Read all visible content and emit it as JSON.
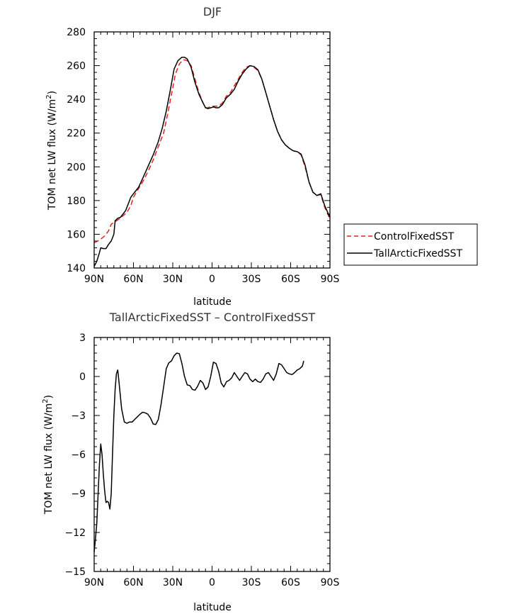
{
  "chart_data": [
    {
      "type": "line",
      "title": "DJF",
      "xlabel": "latitude",
      "ylabel_prefix": "TOM net LW flux  (W/m",
      "ylabel_sup": "2",
      "ylabel_suffix": ")",
      "xlim": [
        -90,
        90
      ],
      "ylim": [
        140,
        280
      ],
      "x_ticks": [
        -90,
        -60,
        -30,
        0,
        30,
        60,
        90
      ],
      "x_tick_labels": [
        "90N",
        "60N",
        "30N",
        "0",
        "30S",
        "60S",
        "90S"
      ],
      "y_ticks": [
        140,
        160,
        180,
        200,
        220,
        240,
        260,
        280
      ],
      "y_tick_labels": [
        "140",
        "160",
        "180",
        "200",
        "220",
        "240",
        "260",
        "280"
      ],
      "legend_position": "right",
      "series": [
        {
          "name": "ControlFixedSST",
          "color": "#e8201a",
          "dash": "dashed",
          "points": [
            [
              -90,
              155
            ],
            [
              -86,
              156.5
            ],
            [
              -82,
              159
            ],
            [
              -79,
              162
            ],
            [
              -77,
              166
            ],
            [
              -74,
              167.5
            ],
            [
              -71,
              169
            ],
            [
              -68,
              171
            ],
            [
              -65,
              173
            ],
            [
              -62,
              177
            ],
            [
              -60,
              182
            ],
            [
              -57,
              186
            ],
            [
              -53,
              191
            ],
            [
              -49,
              197
            ],
            [
              -45,
              204
            ],
            [
              -41,
              212
            ],
            [
              -37,
              220
            ],
            [
              -34,
              231
            ],
            [
              -31,
              243
            ],
            [
              -28,
              255
            ],
            [
              -25,
              261
            ],
            [
              -22,
              263.5
            ],
            [
              -19,
              263
            ],
            [
              -16,
              260
            ],
            [
              -13,
              252
            ],
            [
              -10,
              244
            ],
            [
              -7,
              238
            ],
            [
              -5,
              235
            ],
            [
              -3,
              235
            ],
            [
              -1,
              236
            ],
            [
              1,
              236
            ],
            [
              3,
              236
            ],
            [
              5,
              236
            ],
            [
              8,
              238
            ],
            [
              11,
              242
            ],
            [
              14,
              244
            ],
            [
              17,
              248
            ],
            [
              20,
              252
            ],
            [
              23,
              256
            ],
            [
              26,
              259
            ],
            [
              29,
              260
            ],
            [
              32,
              259
            ],
            [
              35,
              257
            ],
            [
              38,
              252
            ],
            [
              41,
              244
            ],
            [
              44,
              236
            ],
            [
              47,
              228
            ],
            [
              50,
              221
            ],
            [
              53,
              216
            ],
            [
              56,
              213
            ],
            [
              59,
              211
            ],
            [
              62,
              209.5
            ],
            [
              65,
              209
            ],
            [
              68,
              207
            ],
            [
              71,
              200
            ],
            [
              74,
              191
            ],
            [
              77,
              185
            ],
            [
              80,
              183
            ],
            [
              83,
              183.5
            ],
            [
              86,
              176
            ],
            [
              90,
              169
            ]
          ]
        },
        {
          "name": "TallArcticFixedSST",
          "color": "#000000",
          "dash": "solid",
          "points": [
            [
              -90,
              141
            ],
            [
              -88,
              144
            ],
            [
              -86,
              149
            ],
            [
              -85,
              152
            ],
            [
              -83,
              151.5
            ],
            [
              -81,
              151.5
            ],
            [
              -79,
              154
            ],
            [
              -77,
              156
            ],
            [
              -75,
              160
            ],
            [
              -74,
              168
            ],
            [
              -72,
              169.5
            ],
            [
              -70,
              170
            ],
            [
              -68,
              172
            ],
            [
              -66,
              174
            ],
            [
              -64,
              178
            ],
            [
              -62,
              182
            ],
            [
              -59,
              185
            ],
            [
              -56,
              188
            ],
            [
              -53,
              193
            ],
            [
              -49,
              200
            ],
            [
              -45,
              207
            ],
            [
              -41,
              215
            ],
            [
              -38,
              223
            ],
            [
              -35,
              233
            ],
            [
              -32,
              245
            ],
            [
              -29,
              258
            ],
            [
              -26,
              263
            ],
            [
              -23,
              265
            ],
            [
              -21,
              265
            ],
            [
              -19,
              264
            ],
            [
              -16,
              259
            ],
            [
              -13,
              250
            ],
            [
              -10,
              243
            ],
            [
              -7,
              238
            ],
            [
              -5,
              235
            ],
            [
              -3,
              234.5
            ],
            [
              -1,
              235
            ],
            [
              1,
              235.5
            ],
            [
              3,
              235
            ],
            [
              5,
              235
            ],
            [
              8,
              237
            ],
            [
              11,
              241
            ],
            [
              14,
              243
            ],
            [
              17,
              246
            ],
            [
              20,
              251
            ],
            [
              23,
              255
            ],
            [
              26,
              258
            ],
            [
              29,
              260
            ],
            [
              32,
              259.5
            ],
            [
              35,
              257.5
            ],
            [
              38,
              252
            ],
            [
              41,
              244
            ],
            [
              44,
              236
            ],
            [
              47,
              228
            ],
            [
              50,
              221
            ],
            [
              53,
              216
            ],
            [
              56,
              213
            ],
            [
              59,
              211
            ],
            [
              62,
              209.5
            ],
            [
              65,
              209
            ],
            [
              68,
              207.5
            ],
            [
              71,
              201
            ],
            [
              74,
              191
            ],
            [
              77,
              185
            ],
            [
              80,
              183
            ],
            [
              83,
              184
            ],
            [
              86,
              177
            ],
            [
              90,
              170
            ]
          ]
        }
      ]
    },
    {
      "type": "line",
      "title": "TallArcticFixedSST – ControlFixedSST",
      "xlabel": "latitude",
      "ylabel_prefix": "TOM net LW flux  (W/m",
      "ylabel_sup": "2",
      "ylabel_suffix": ")",
      "xlim": [
        -90,
        90
      ],
      "ylim": [
        -15,
        3
      ],
      "x_ticks": [
        -90,
        -60,
        -30,
        0,
        30,
        60,
        90
      ],
      "x_tick_labels": [
        "90N",
        "60N",
        "30N",
        "0",
        "30S",
        "60S",
        "90S"
      ],
      "y_ticks": [
        -15,
        -12,
        -9,
        -6,
        -3,
        0,
        3
      ],
      "y_tick_labels": [
        "−15",
        "−12",
        "−9",
        "−6",
        "−3",
        "0",
        "3"
      ],
      "series": [
        {
          "name": "",
          "color": "#000000",
          "dash": "solid",
          "points": [
            [
              -90,
              -13.5
            ],
            [
              -89,
              -12.5
            ],
            [
              -88,
              -11.3
            ],
            [
              -87,
              -9
            ],
            [
              -86,
              -6.8
            ],
            [
              -85,
              -5.2
            ],
            [
              -84,
              -6
            ],
            [
              -83,
              -7.5
            ],
            [
              -82,
              -8.8
            ],
            [
              -81,
              -9.7
            ],
            [
              -80,
              -9.6
            ],
            [
              -79,
              -9.7
            ],
            [
              -78,
              -10.2
            ],
            [
              -77,
              -9
            ],
            [
              -76,
              -6
            ],
            [
              -75,
              -3
            ],
            [
              -74,
              -1
            ],
            [
              -73,
              0.2
            ],
            [
              -72,
              0.5
            ],
            [
              -71,
              -0.5
            ],
            [
              -70,
              -1.5
            ],
            [
              -69,
              -2.5
            ],
            [
              -68,
              -3
            ],
            [
              -67,
              -3.5
            ],
            [
              -65,
              -3.6
            ],
            [
              -63,
              -3.5
            ],
            [
              -61,
              -3.5
            ],
            [
              -59,
              -3.3
            ],
            [
              -57,
              -3.1
            ],
            [
              -55,
              -2.9
            ],
            [
              -53,
              -2.75
            ],
            [
              -51,
              -2.8
            ],
            [
              -49,
              -2.9
            ],
            [
              -47,
              -3.2
            ],
            [
              -45,
              -3.65
            ],
            [
              -43,
              -3.7
            ],
            [
              -41,
              -3.3
            ],
            [
              -39,
              -2.2
            ],
            [
              -37,
              -0.8
            ],
            [
              -35,
              0.6
            ],
            [
              -33,
              1.05
            ],
            [
              -31,
              1.2
            ],
            [
              -29,
              1.6
            ],
            [
              -27,
              1.8
            ],
            [
              -25,
              1.75
            ],
            [
              -23,
              1
            ],
            [
              -21,
              0
            ],
            [
              -19,
              -0.65
            ],
            [
              -17,
              -0.7
            ],
            [
              -15,
              -1
            ],
            [
              -13,
              -1.05
            ],
            [
              -11,
              -0.75
            ],
            [
              -9,
              -0.3
            ],
            [
              -7,
              -0.5
            ],
            [
              -5,
              -1
            ],
            [
              -3,
              -0.8
            ],
            [
              -1,
              0
            ],
            [
              1,
              1.1
            ],
            [
              3,
              1
            ],
            [
              5,
              0.4
            ],
            [
              7,
              -0.5
            ],
            [
              9,
              -0.8
            ],
            [
              11,
              -0.4
            ],
            [
              13,
              -0.3
            ],
            [
              15,
              -0.1
            ],
            [
              17,
              0.3
            ],
            [
              19,
              0
            ],
            [
              21,
              -0.3
            ],
            [
              23,
              0
            ],
            [
              25,
              0.3
            ],
            [
              27,
              0.2
            ],
            [
              29,
              -0.2
            ],
            [
              31,
              -0.4
            ],
            [
              33,
              -0.2
            ],
            [
              35,
              -0.4
            ],
            [
              37,
              -0.45
            ],
            [
              39,
              -0.2
            ],
            [
              41,
              0.2
            ],
            [
              43,
              0.3
            ],
            [
              45,
              0
            ],
            [
              47,
              -0.3
            ],
            [
              49,
              0.2
            ],
            [
              51,
              1
            ],
            [
              53,
              0.9
            ],
            [
              55,
              0.6
            ],
            [
              57,
              0.3
            ],
            [
              59,
              0.2
            ],
            [
              61,
              0.15
            ],
            [
              63,
              0.3
            ],
            [
              65,
              0.5
            ],
            [
              67,
              0.6
            ],
            [
              69,
              0.8
            ],
            [
              70,
              1.2
            ]
          ]
        }
      ]
    }
  ]
}
